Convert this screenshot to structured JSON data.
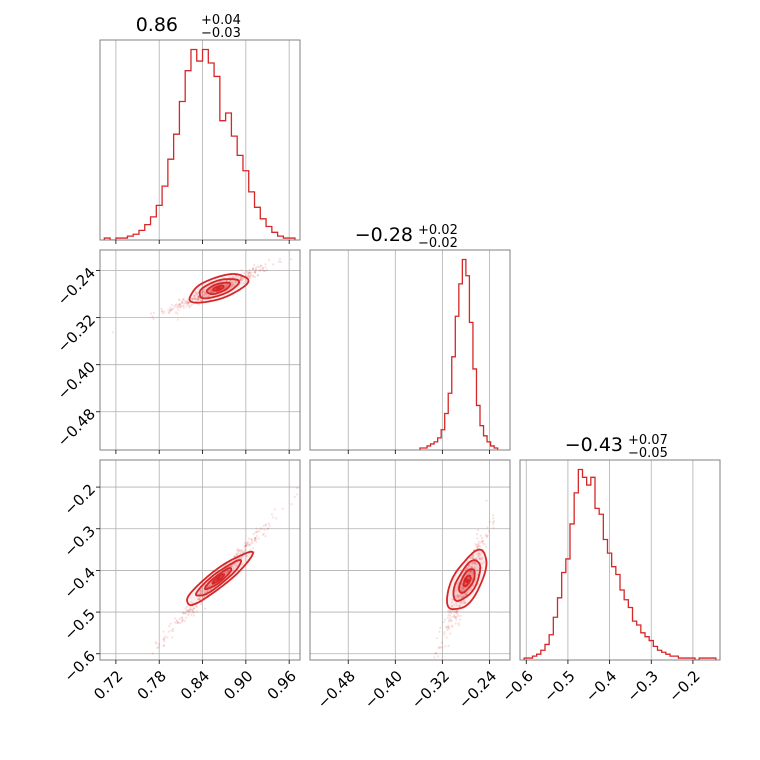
{
  "chart_data": {
    "type": "corner",
    "color": "#d62728",
    "params": [
      {
        "title_main": "0.86",
        "title_plus": "+0.04",
        "title_minus": "−0.03",
        "range": [
          0.698,
          0.975
        ],
        "ticks": [
          0.72,
          0.78,
          0.84,
          0.9,
          0.96
        ],
        "tick_labels": [
          "0.72",
          "0.78",
          "0.84",
          "0.90",
          "0.96"
        ],
        "hist": {
          "x": [
            0.708,
            0.716,
            0.724,
            0.732,
            0.74,
            0.748,
            0.756,
            0.764,
            0.772,
            0.78,
            0.788,
            0.796,
            0.804,
            0.812,
            0.82,
            0.828,
            0.836,
            0.844,
            0.852,
            0.86,
            0.868,
            0.876,
            0.884,
            0.892,
            0.9,
            0.908,
            0.916,
            0.924,
            0.932,
            0.94,
            0.948,
            0.956,
            0.964
          ],
          "counts": [
            1,
            0,
            1,
            1,
            2,
            3,
            5,
            8,
            12,
            18,
            28,
            42,
            55,
            72,
            88,
            99,
            93,
            99,
            92,
            85,
            62,
            66,
            54,
            44,
            36,
            25,
            17,
            11,
            7,
            4,
            2,
            1,
            1
          ]
        }
      },
      {
        "title_main": "−0.28",
        "title_plus": "+0.02",
        "title_minus": "−0.02",
        "range": [
          -0.545,
          -0.205
        ],
        "ticks": [
          -0.48,
          -0.4,
          -0.32,
          -0.24
        ],
        "tick_labels": [
          "−0.48",
          "−0.40",
          "−0.32",
          "−0.24"
        ],
        "hist": {
          "x": [
            -0.355,
            -0.349,
            -0.343,
            -0.337,
            -0.331,
            -0.325,
            -0.319,
            -0.313,
            -0.307,
            -0.301,
            -0.295,
            -0.289,
            -0.283,
            -0.277,
            -0.271,
            -0.265,
            -0.259,
            -0.253,
            -0.247,
            -0.241,
            -0.235,
            -0.229
          ],
          "counts": [
            1,
            1,
            2,
            3,
            4,
            6,
            10,
            18,
            28,
            46,
            66,
            82,
            94,
            86,
            63,
            40,
            22,
            12,
            7,
            4,
            2,
            1
          ]
        }
      },
      {
        "title_main": "−0.43",
        "title_plus": "+0.07",
        "title_minus": "−0.05",
        "range": [
          -0.615,
          -0.135
        ],
        "ticks": [
          -0.6,
          -0.5,
          -0.4,
          -0.3,
          -0.2
        ],
        "tick_labels": [
          "−0.6",
          "−0.5",
          "−0.4",
          "−0.3",
          "−0.2"
        ],
        "hist": {
          "x": [
            -0.6,
            -0.59,
            -0.58,
            -0.57,
            -0.56,
            -0.55,
            -0.54,
            -0.53,
            -0.52,
            -0.51,
            -0.5,
            -0.49,
            -0.48,
            -0.47,
            -0.46,
            -0.45,
            -0.44,
            -0.43,
            -0.42,
            -0.41,
            -0.4,
            -0.39,
            -0.38,
            -0.37,
            -0.36,
            -0.35,
            -0.34,
            -0.33,
            -0.32,
            -0.31,
            -0.3,
            -0.29,
            -0.28,
            -0.27,
            -0.26,
            -0.25,
            -0.24,
            -0.23,
            -0.22,
            -0.21,
            -0.2,
            -0.19,
            -0.18,
            -0.17,
            -0.16,
            -0.15
          ],
          "counts": [
            1,
            1,
            2,
            3,
            5,
            8,
            13,
            22,
            32,
            45,
            52,
            70,
            86,
            98,
            94,
            90,
            94,
            78,
            75,
            62,
            55,
            48,
            44,
            36,
            31,
            27,
            20,
            18,
            14,
            12,
            10,
            7,
            5,
            4,
            3,
            2,
            2,
            1,
            1,
            1,
            1,
            0,
            1,
            1,
            1,
            1
          ]
        }
      }
    ],
    "pairs": [
      {
        "row": 1,
        "col": 0,
        "center": [
          0.862,
          -0.27
        ],
        "spread": [
          0.029,
          0.016
        ],
        "corr": 0.96,
        "rotation_deg": -19,
        "levels": [
          2.5,
          1.7,
          1.0,
          0.45
        ]
      },
      {
        "row": 2,
        "col": 0,
        "center": [
          0.862,
          -0.42
        ],
        "spread": [
          0.029,
          0.055
        ],
        "corr": 0.99,
        "rotation_deg": -38,
        "levels": [
          2.5,
          1.7,
          1.0,
          0.45
        ]
      },
      {
        "row": 2,
        "col": 1,
        "center": [
          -0.278,
          -0.425
        ],
        "spread": [
          0.016,
          0.055
        ],
        "corr": 0.93,
        "rotation_deg": -62,
        "levels": [
          2.5,
          1.7,
          1.0,
          0.45
        ]
      }
    ],
    "grid": true,
    "legend": "none"
  }
}
